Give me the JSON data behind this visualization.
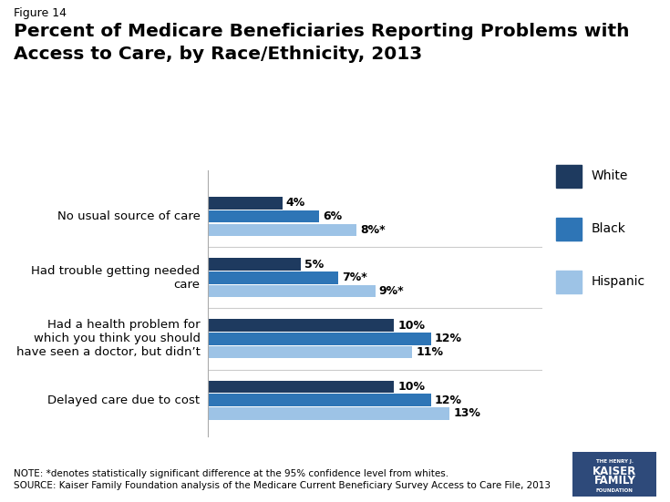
{
  "figure_label": "Figure 14",
  "title_line1": "Percent of Medicare Beneficiaries Reporting Problems with",
  "title_line2": "Access to Care, by Race/Ethnicity, 2013",
  "categories": [
    "No usual source of care",
    "Had trouble getting needed\ncare",
    "Had a health problem for\nwhich you think you should\nhave seen a doctor, but didn’t",
    "Delayed care due to cost"
  ],
  "series": {
    "White": [
      4,
      5,
      10,
      10
    ],
    "Black": [
      6,
      7,
      12,
      12
    ],
    "Hispanic": [
      8,
      9,
      11,
      13
    ]
  },
  "labels": {
    "White": [
      "4%",
      "5%",
      "10%",
      "10%"
    ],
    "Black": [
      "6%",
      "7%*",
      "12%",
      "12%"
    ],
    "Hispanic": [
      "8%*",
      "9%*",
      "11%",
      "13%"
    ]
  },
  "colors": {
    "White": "#1e3a5f",
    "Black": "#2e75b6",
    "Hispanic": "#9dc3e6"
  },
  "legend_order": [
    "White",
    "Black",
    "Hispanic"
  ],
  "bar_height": 0.2,
  "bar_gap": 0.02,
  "xlim": [
    0,
    18
  ],
  "ylim_bottom": -0.6,
  "ylim_top": 3.75,
  "note_line1": "NOTE: *denotes statistically significant difference at the 95% confidence level from whites.",
  "note_line2": "SOURCE: Kaiser Family Foundation analysis of the Medicare Current Beneficiary Survey Access to Care File, 2013"
}
